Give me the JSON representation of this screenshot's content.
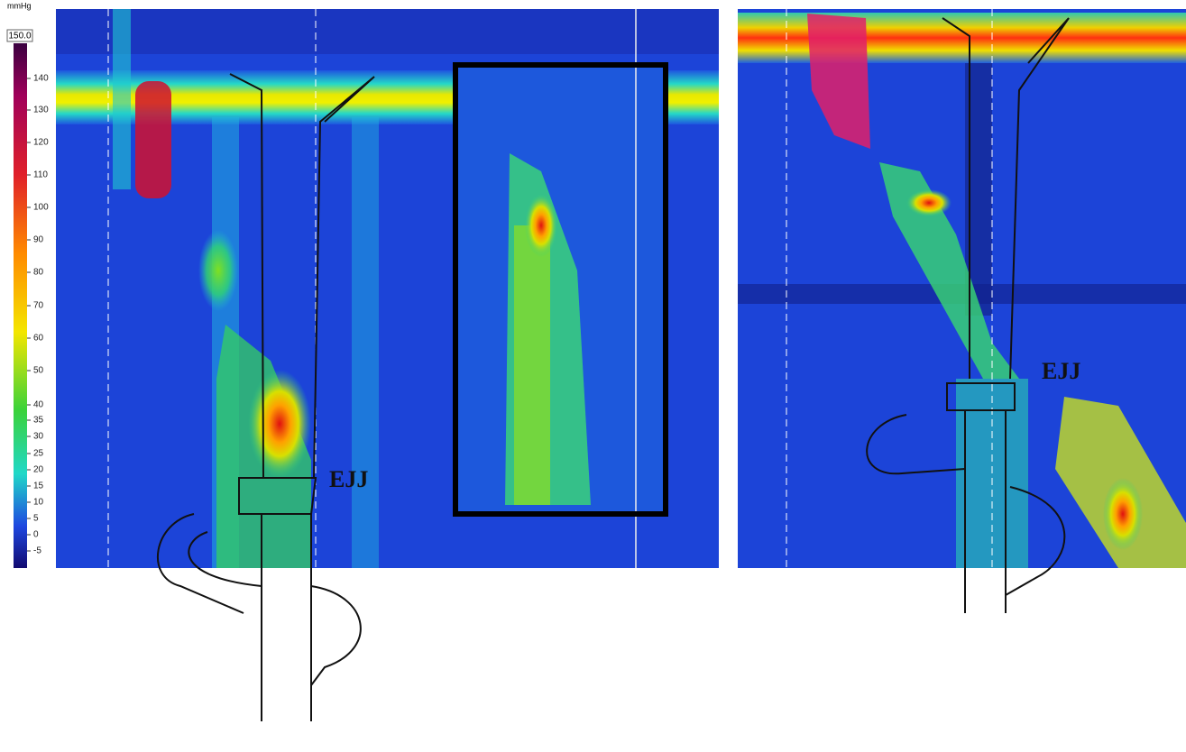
{
  "colorbar": {
    "unit": "mmHg",
    "max_label": "150.0",
    "ticks": [
      140,
      130,
      120,
      110,
      100,
      90,
      80,
      70,
      60,
      50,
      40,
      35,
      30,
      25,
      20,
      15,
      10,
      5,
      0,
      -5
    ]
  },
  "panels": [
    {
      "annotation": "EJJ"
    },
    {
      "annotation": "EJJ"
    }
  ]
}
